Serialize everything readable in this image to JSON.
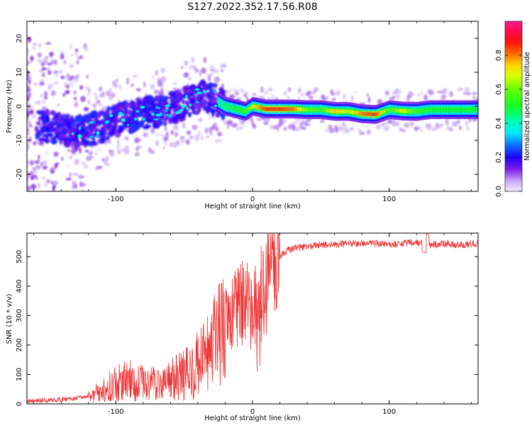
{
  "figure": {
    "title": "S127.2022.352.17.56.R08"
  },
  "chart_data": [
    {
      "type": "heatmap",
      "xlabel": "Height of straight line (km)",
      "ylabel": "Frequency (Hz)",
      "xlim": [
        -165,
        165
      ],
      "ylim": [
        -25,
        25
      ],
      "x_ticks": [
        -100,
        0,
        100
      ],
      "y_ticks": [
        -20,
        -10,
        0,
        10,
        20
      ],
      "colorbar": {
        "label": "Normalized spectral amplitude",
        "range": [
          0,
          1
        ],
        "ticks": [
          0.0,
          0.2,
          0.4,
          0.6,
          0.8
        ],
        "tick_labels": [
          "0.0",
          "0.2",
          "0.4",
          "0.6",
          "0.8"
        ],
        "colormap": "gist_ncar-like (white-purple-blue-cyan-green-yellow-red-magenta)"
      },
      "ridge_frequency_hz": {
        "x": [
          -160,
          -150,
          -140,
          -130,
          -120,
          -110,
          -100,
          -90,
          -80,
          -70,
          -60,
          -50,
          -40,
          -30,
          -20,
          -10,
          -5,
          0,
          10,
          20,
          30,
          40,
          50,
          60,
          70,
          80,
          90,
          100,
          110,
          120,
          130,
          140,
          150,
          160
        ],
        "y": [
          -5,
          -6,
          -7,
          -7.5,
          -7,
          -6,
          -4,
          -3,
          -2,
          -1.5,
          -0.5,
          1,
          2.5,
          2.5,
          0,
          -1,
          -1.5,
          0,
          -0.8,
          -0.8,
          -0.8,
          -1,
          -1,
          -1.5,
          -1.5,
          -2.2,
          -2.4,
          -1,
          -1.4,
          -1.5,
          -1,
          -1,
          -1,
          -1
        ],
        "amplitude": [
          0.1,
          0.15,
          0.2,
          0.22,
          0.2,
          0.22,
          0.25,
          0.25,
          0.28,
          0.3,
          0.3,
          0.3,
          0.32,
          0.35,
          0.45,
          0.5,
          0.55,
          0.7,
          0.85,
          0.85,
          0.8,
          0.6,
          0.55,
          0.75,
          0.65,
          0.8,
          0.85,
          0.55,
          0.7,
          0.55,
          0.5,
          0.5,
          0.5,
          0.5
        ]
      }
    },
    {
      "type": "line",
      "xlabel": "Height of straight line (km)",
      "ylabel": "SNR (10 * v/v)",
      "xlim": [
        -165,
        165
      ],
      "ylim": [
        0,
        580
      ],
      "x_ticks": [
        -100,
        0,
        100
      ],
      "y_ticks": [
        0,
        100,
        200,
        300,
        400,
        500
      ],
      "series": [
        {
          "color": "#ee3333",
          "x": [
            -165,
            -150,
            -140,
            -130,
            -120,
            -110,
            -100,
            -90,
            -80,
            -70,
            -60,
            -50,
            -40,
            -35,
            -30,
            -25,
            -20,
            -15,
            -10,
            -5,
            0,
            5,
            10,
            15,
            20,
            25,
            30,
            40,
            50,
            60,
            70,
            80,
            90,
            100,
            110,
            120,
            125,
            130,
            140,
            150,
            165
          ],
          "y": [
            10,
            12,
            15,
            18,
            25,
            45,
            70,
            80,
            70,
            70,
            80,
            100,
            130,
            150,
            180,
            220,
            270,
            300,
            330,
            350,
            300,
            360,
            420,
            460,
            500,
            520,
            530,
            535,
            540,
            540,
            545,
            545,
            545,
            540,
            545,
            550,
            545,
            540,
            545,
            540,
            545
          ]
        }
      ]
    }
  ]
}
